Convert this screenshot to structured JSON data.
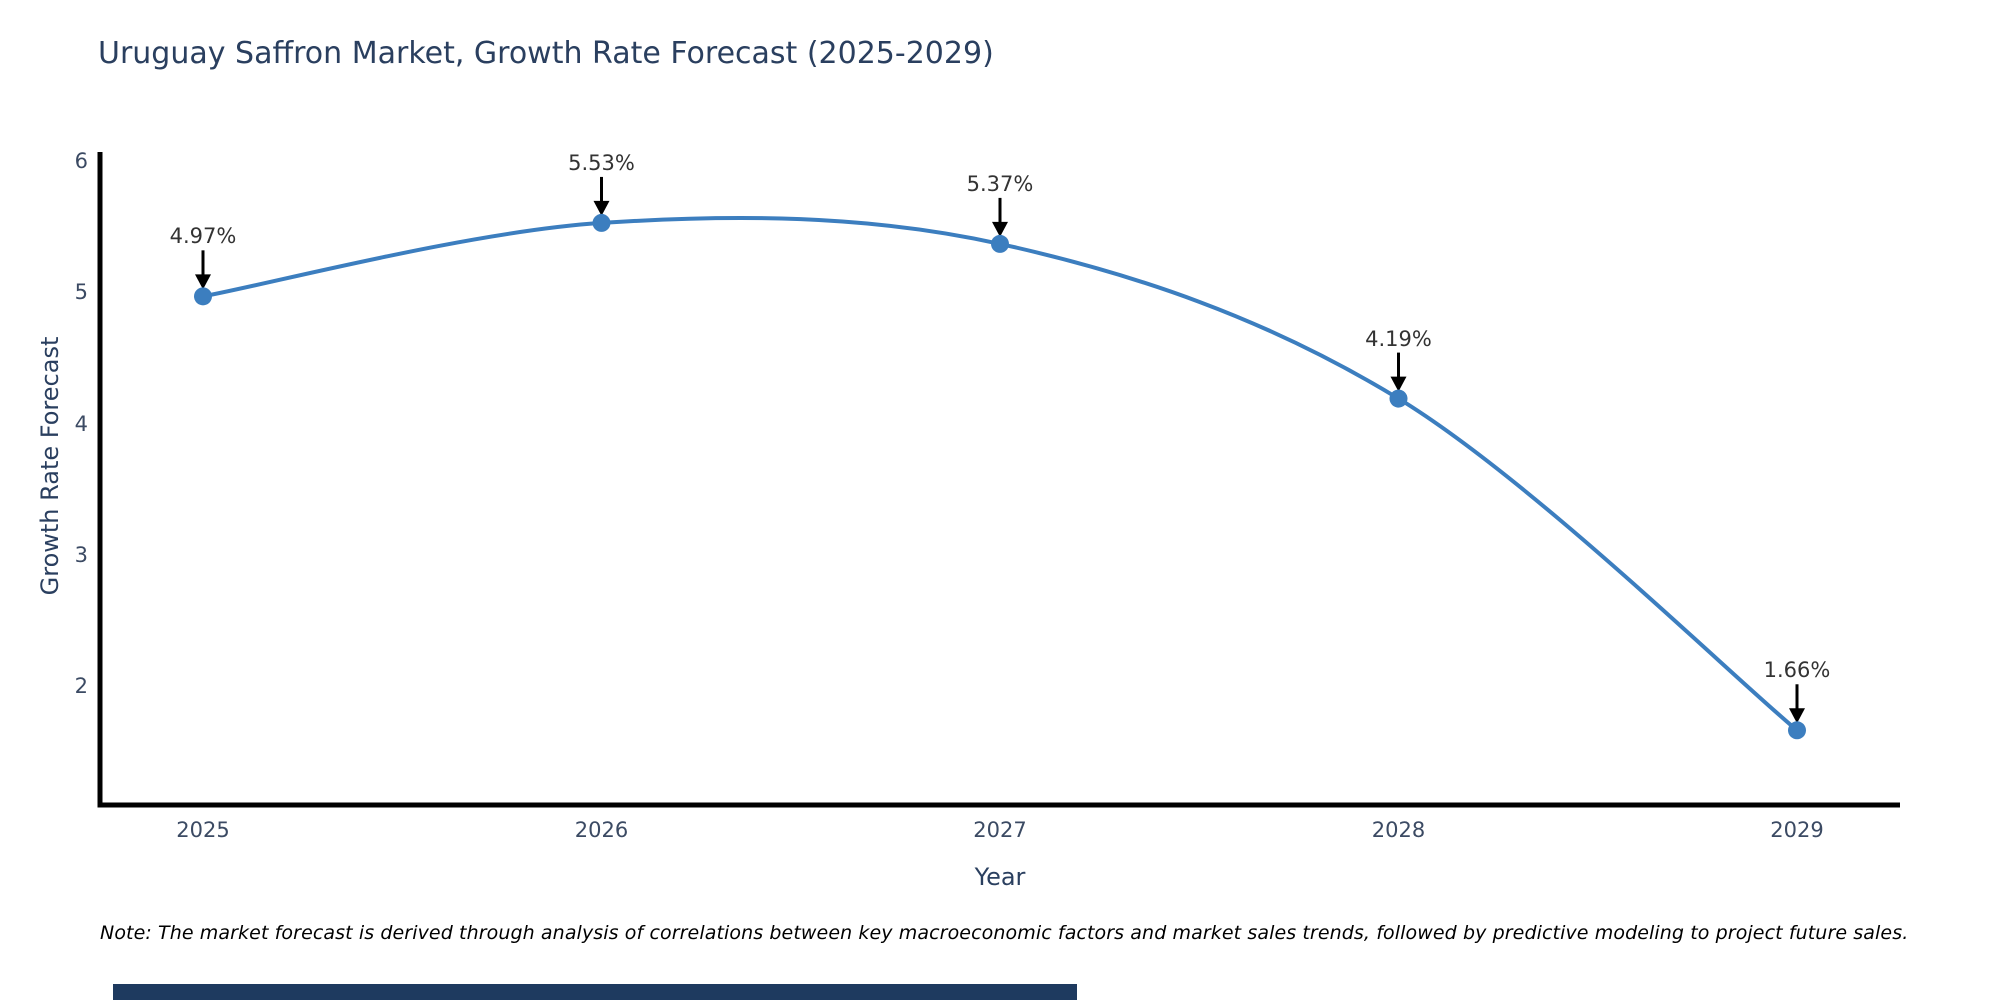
{
  "title": "Uruguay Saffron Market, Growth Rate Forecast (2025-2029)",
  "note": "Note: The market forecast is derived through analysis of correlations between key macroeconomic factors and market sales trends, followed by predictive modeling to project future sales.",
  "chart_data": {
    "type": "line",
    "title": "Uruguay Saffron Market, Growth Rate Forecast (2025-2029)",
    "xlabel": "Year",
    "ylabel": "Growth Rate Forecast",
    "categories": [
      "2025",
      "2026",
      "2027",
      "2028",
      "2029"
    ],
    "values": [
      4.97,
      5.53,
      5.37,
      4.19,
      1.66
    ],
    "point_labels": [
      "4.97%",
      "5.53%",
      "5.37%",
      "4.19%",
      "1.66%"
    ],
    "yticks": [
      2,
      3,
      4,
      5,
      6
    ],
    "ylim": [
      1.09,
      6.01
    ],
    "line_shape": "spline",
    "markers": "circle",
    "annotations": "arrow-down-to-point",
    "grid": false,
    "legend_position": "none",
    "colors": {
      "line": "#3c7ebf",
      "marker": "#3c7ebf",
      "axis": "#000000",
      "arrow": "#000000",
      "title_text": "#2a3f5f",
      "tick_text": "#3b4a63",
      "annotation_text": "#333333",
      "footer_bar": "#1e3a5f"
    }
  }
}
